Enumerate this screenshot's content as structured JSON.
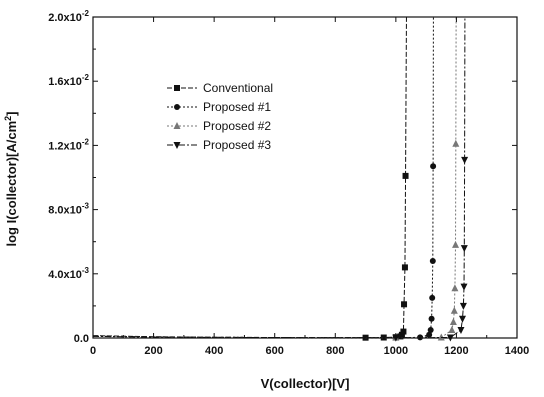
{
  "chart_data": {
    "type": "line",
    "xlabel": "V(collector)[V]",
    "ylabel_main": "log I(collector)[A/cm",
    "ylabel_sup": "2",
    "ylabel_end": "]",
    "xlim": [
      0,
      1400
    ],
    "ylim": [
      0,
      0.02
    ],
    "x_ticks": [
      "0",
      "200",
      "400",
      "600",
      "800",
      "1000",
      "1200",
      "1400"
    ],
    "y_ticks": [
      {
        "mant": "0.0",
        "exp": ""
      },
      {
        "mant": "4.0x10",
        "exp": "-3"
      },
      {
        "mant": "8.0x10",
        "exp": "-3"
      },
      {
        "mant": "1.2x10",
        "exp": "-2"
      },
      {
        "mant": "1.6x10",
        "exp": "-2"
      },
      {
        "mant": "2.0x10",
        "exp": "-2"
      }
    ],
    "legend_position": "upper-left",
    "grid": false,
    "series": [
      {
        "name": "Conventional",
        "marker": "square",
        "color": "#111111",
        "dash": "5,2",
        "x": [
          0,
          200,
          400,
          600,
          800,
          900,
          960,
          1000,
          1015,
          1020,
          1025,
          1027,
          1030,
          1032,
          1035
        ],
        "y": [
          0.00015,
          8e-05,
          5e-05,
          3e-05,
          2e-05,
          2e-05,
          3e-05,
          5e-05,
          0.0001,
          0.0002,
          0.0004,
          0.0021,
          0.0044,
          0.0101,
          0.02
        ]
      },
      {
        "name": "Proposed #1",
        "marker": "circle",
        "color": "#111111",
        "dash": "2,2",
        "x": [
          0,
          200,
          400,
          600,
          800,
          1000,
          1080,
          1110,
          1115,
          1118,
          1120,
          1122,
          1123,
          1124
        ],
        "y": [
          0.00012,
          7e-05,
          4e-05,
          3e-05,
          2e-05,
          2e-05,
          4e-05,
          0.0002,
          0.0005,
          0.0012,
          0.0025,
          0.0048,
          0.0107,
          0.02
        ]
      },
      {
        "name": "Proposed #2",
        "marker": "triangle-up",
        "color": "#777777",
        "dash": "2,2",
        "x": [
          0,
          200,
          400,
          600,
          800,
          1000,
          1150,
          1185,
          1190,
          1193,
          1195,
          1197,
          1198,
          1199
        ],
        "y": [
          0.0001,
          6e-05,
          4e-05,
          3e-05,
          2e-05,
          2e-05,
          3e-05,
          0.0005,
          0.001,
          0.0017,
          0.0031,
          0.0058,
          0.0121,
          0.02
        ]
      },
      {
        "name": "Proposed #3",
        "marker": "triangle-down",
        "color": "#111111",
        "dash": "6,2,2,2",
        "x": [
          0,
          200,
          400,
          600,
          800,
          1000,
          1180,
          1215,
          1220,
          1223,
          1225,
          1226,
          1227,
          1228
        ],
        "y": [
          0.0001,
          6e-05,
          4e-05,
          3e-05,
          2e-05,
          2e-05,
          3e-05,
          0.0005,
          0.0012,
          0.002,
          0.0032,
          0.0056,
          0.0111,
          0.02
        ]
      }
    ]
  }
}
